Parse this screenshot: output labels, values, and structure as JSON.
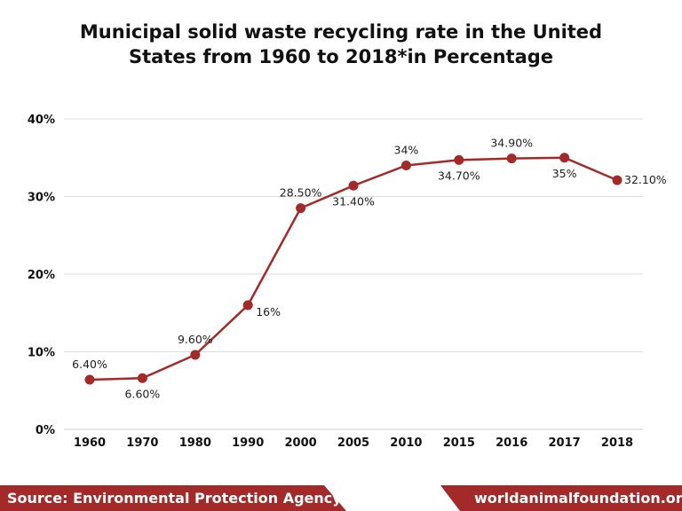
{
  "title_lines": [
    "Municipal solid waste recycling rate in the United",
    "States from 1960 to 2018*in Percentage"
  ],
  "footer": {
    "source": "Source: Environmental Protection Agency",
    "site": "worldanimalfoundation.org"
  },
  "colors": {
    "line": "#a42a2a",
    "banner": "#a42a2a",
    "grid": "#dddddd"
  },
  "chart_data": {
    "type": "line",
    "title": "Municipal solid waste recycling rate in the United States from 1960 to 2018*in Percentage",
    "xlabel": "",
    "ylabel": "",
    "categories": [
      "1960",
      "1970",
      "1980",
      "1990",
      "2000",
      "2005",
      "2010",
      "2015",
      "2016",
      "2017",
      "2018"
    ],
    "values": [
      6.4,
      6.6,
      9.6,
      16,
      28.5,
      31.4,
      34,
      34.7,
      34.9,
      35,
      32.1
    ],
    "data_labels": [
      "6.40%",
      "6.60%",
      "9.60%",
      "16%",
      "28.50%",
      "31.40%",
      "34%",
      "34.70%",
      "34.90%",
      "35%",
      "32.10%"
    ],
    "label_positions": [
      "above",
      "below",
      "above",
      "right",
      "above",
      "below",
      "above",
      "below",
      "above",
      "below",
      "right"
    ],
    "yticks": [
      "0%",
      "10%",
      "20%",
      "30%",
      "40%"
    ],
    "ytick_values": [
      0,
      10,
      20,
      30,
      40
    ],
    "ylim": [
      0,
      40
    ],
    "grid": true,
    "legend": "none"
  }
}
